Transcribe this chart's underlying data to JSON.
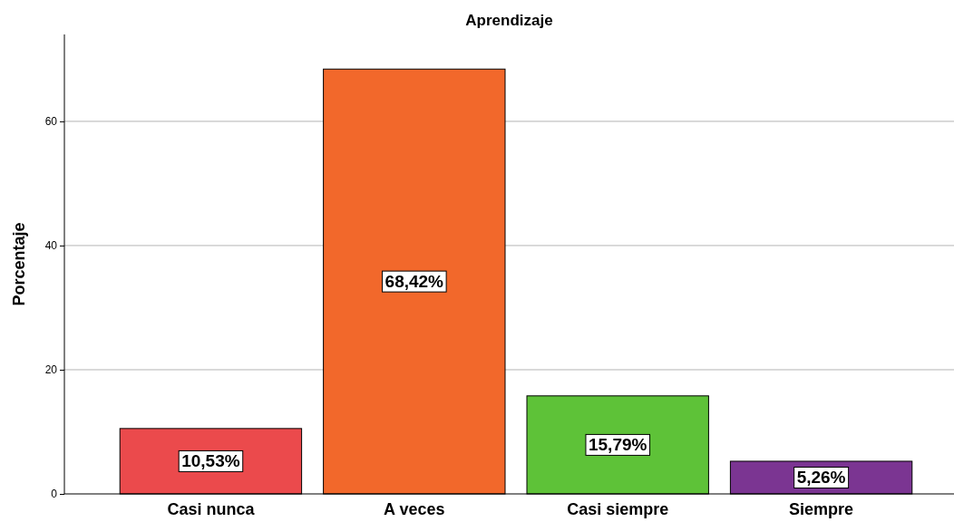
{
  "chart_data": {
    "type": "bar",
    "title": "Aprendizaje",
    "ylabel": "Porcentaje",
    "categories": [
      "Casi nunca",
      "A veces",
      "Casi siempre",
      "Siempre"
    ],
    "values": [
      10.53,
      68.42,
      15.79,
      5.26
    ],
    "colors": [
      "#eb4a4c",
      "#f2682b",
      "#5ec238",
      "#7b3592"
    ],
    "value_labels": [
      "10,53%",
      "68,42%",
      "15,79%",
      "5,26%"
    ],
    "ylim": [
      0,
      74
    ],
    "yticks": [
      0,
      20,
      40,
      60
    ],
    "grid": "y"
  }
}
